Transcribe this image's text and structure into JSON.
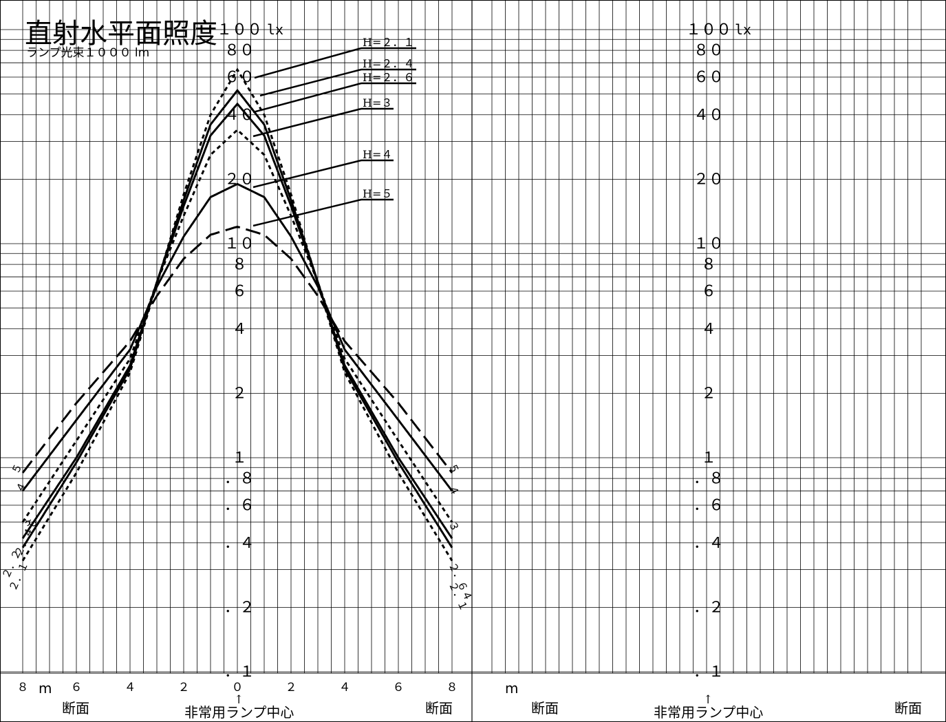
{
  "title": "直射水平面照度",
  "subtitle": "ランプ光束１０００ lm",
  "axis": {
    "y_unit": "lx",
    "y_tick_labels": [
      "１００",
      "８０",
      "６０",
      "４０",
      "２０",
      "１０",
      "８",
      "６",
      "４",
      "２",
      "１",
      "．８",
      "．６",
      "．４",
      "．２",
      "．１"
    ],
    "x_unit": "m",
    "x_tick_labels": [
      "８",
      "６",
      "４",
      "２",
      "０",
      "２",
      "４",
      "６",
      "８"
    ],
    "x_section_label": "断面",
    "x_center_label": "非常用ランプ中心",
    "center_arrow": "↑"
  },
  "legend": [
    {
      "label": "H=２．１",
      "style": "dotted"
    },
    {
      "label": "H=２．４",
      "style": "solid"
    },
    {
      "label": "H=２．６",
      "style": "solid"
    },
    {
      "label": "H=３",
      "style": "dotted"
    },
    {
      "label": "H=４",
      "style": "solid"
    },
    {
      "label": "H=５",
      "style": "dashed"
    }
  ],
  "curve_end_labels": {
    "left": [
      "２．１",
      "２．２",
      "２．４６",
      "３",
      "４",
      "５"
    ],
    "right": [
      "５",
      "４",
      "３",
      "２．６４",
      "２．１"
    ]
  },
  "chart_data": {
    "type": "line",
    "title": "直射水平面照度",
    "subtitle": "ランプ光束１０００ lm",
    "xlabel": "断面",
    "x_unit": "m",
    "ylabel": "",
    "y_unit": "lx",
    "y_scale": "log",
    "ylim": [
      0.1,
      100
    ],
    "xlim": [
      -8,
      8
    ],
    "grid": true,
    "series": [
      {
        "name": "H=2.1",
        "style": "dotted",
        "x": [
          -8,
          -6,
          -4,
          -3,
          -2,
          -1,
          0,
          1,
          2,
          3,
          4,
          6,
          8
        ],
        "y": [
          0.33,
          0.85,
          2.5,
          6.5,
          17,
          40,
          65,
          40,
          17,
          6.5,
          2.5,
          0.85,
          0.33
        ]
      },
      {
        "name": "H=2.4",
        "style": "solid",
        "x": [
          -8,
          -6,
          -4,
          -3,
          -2,
          -1,
          0,
          1,
          2,
          3,
          4,
          6,
          8
        ],
        "y": [
          0.38,
          0.95,
          2.6,
          6.6,
          16,
          36,
          52,
          36,
          16,
          6.6,
          2.6,
          0.95,
          0.38
        ]
      },
      {
        "name": "H=2.6",
        "style": "solid",
        "x": [
          -8,
          -6,
          -4,
          -3,
          -2,
          -1,
          0,
          1,
          2,
          3,
          4,
          6,
          8
        ],
        "y": [
          0.42,
          1.0,
          2.7,
          6.6,
          15,
          32,
          45,
          32,
          15,
          6.6,
          2.7,
          1.0,
          0.42
        ]
      },
      {
        "name": "H=3",
        "style": "dotted",
        "x": [
          -8,
          -6,
          -4,
          -3,
          -2,
          -1,
          0,
          1,
          2,
          3,
          4,
          6,
          8
        ],
        "y": [
          0.5,
          1.2,
          2.9,
          6.6,
          13.5,
          26,
          34,
          26,
          13.5,
          6.6,
          2.9,
          1.2,
          0.5
        ]
      },
      {
        "name": "H=4",
        "style": "solid",
        "x": [
          -8,
          -6,
          -4,
          -3,
          -2,
          -1,
          0,
          1,
          2,
          3,
          4,
          6,
          8
        ],
        "y": [
          0.7,
          1.5,
          3.2,
          6.3,
          10.8,
          16.5,
          19,
          16.5,
          10.8,
          6.3,
          3.2,
          1.5,
          0.7
        ]
      },
      {
        "name": "H=5",
        "style": "dashed",
        "x": [
          -8,
          -6,
          -4,
          -3,
          -2,
          -1,
          0,
          1,
          2,
          3,
          4,
          6,
          8
        ],
        "y": [
          0.85,
          1.8,
          3.5,
          5.7,
          8.5,
          11,
          12,
          11,
          8.5,
          5.7,
          3.5,
          1.8,
          0.85
        ]
      }
    ]
  }
}
